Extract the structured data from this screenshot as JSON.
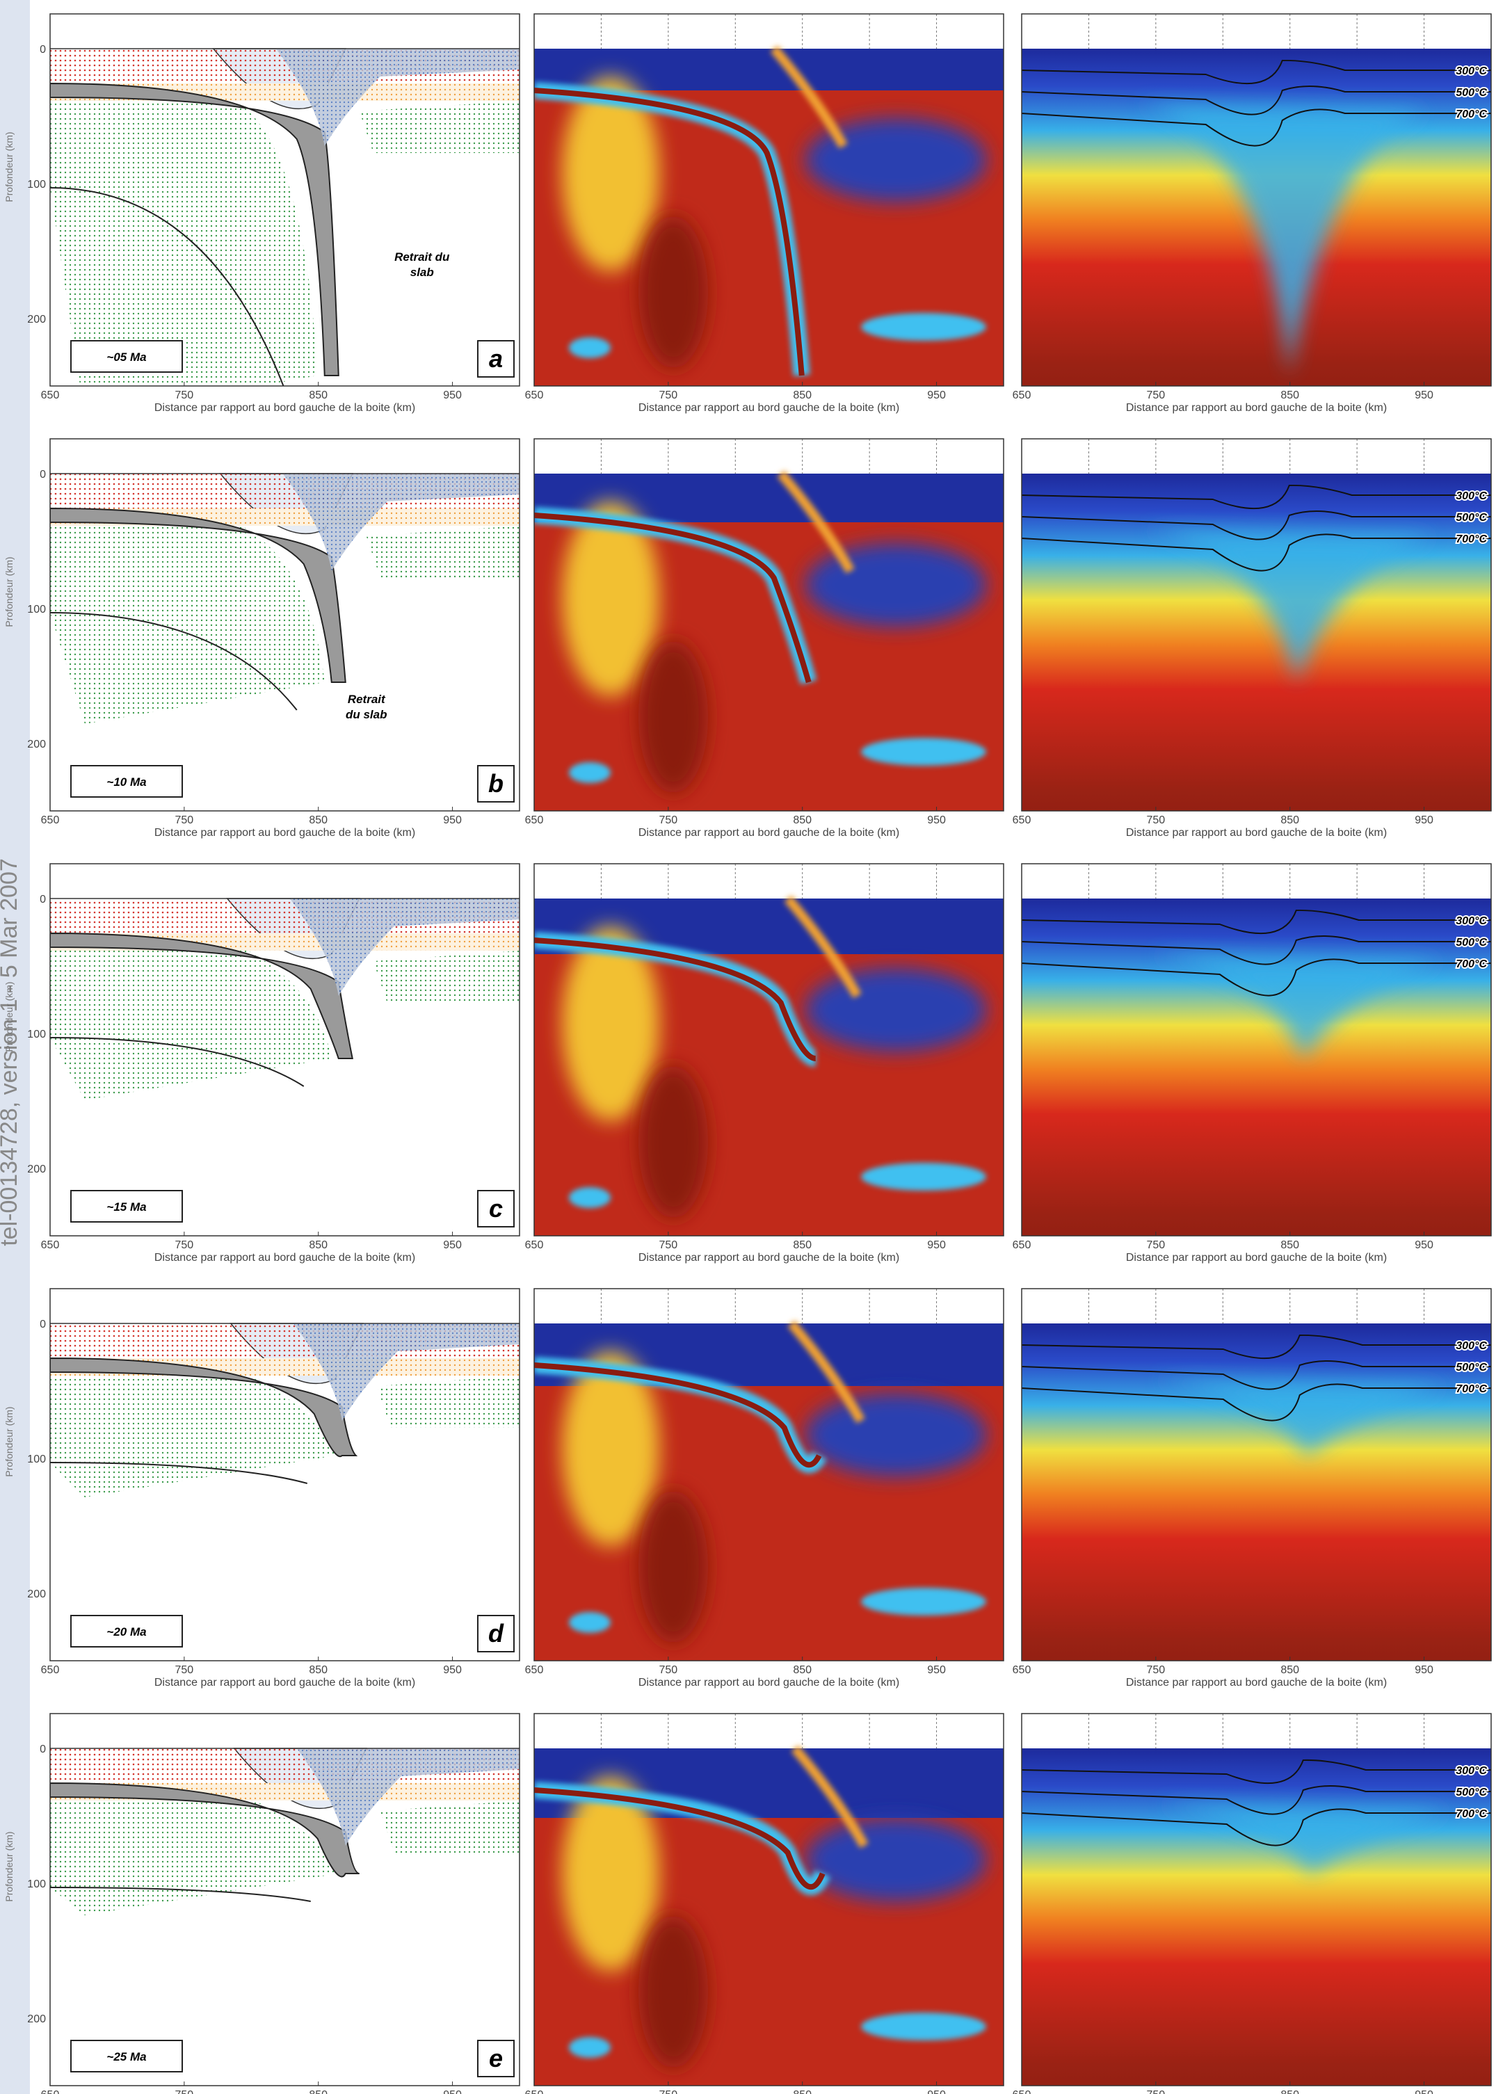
{
  "watermark": "tel-00134728, version 1 - 5 Mar 2007",
  "axis": {
    "x_label": "Distance par rapport au bord gauche de la boite (km)",
    "y_label": "Profondeur (km)",
    "x_ticks": [
      "650",
      "750",
      "850",
      "950"
    ],
    "y_ticks": [
      "0",
      "100",
      "200"
    ]
  },
  "isotherms": [
    "300°C",
    "500°C",
    "700°C"
  ],
  "rows": [
    {
      "letter": "a",
      "time": "~05 Ma",
      "annotation": [
        "Retrait du",
        "slab"
      ]
    },
    {
      "letter": "b",
      "time": "~10 Ma",
      "annotation": [
        "Retrait",
        "du slab"
      ]
    },
    {
      "letter": "c",
      "time": "~15 Ma"
    },
    {
      "letter": "d",
      "time": "~20 Ma"
    },
    {
      "letter": "e",
      "time": "~25 Ma"
    }
  ]
}
